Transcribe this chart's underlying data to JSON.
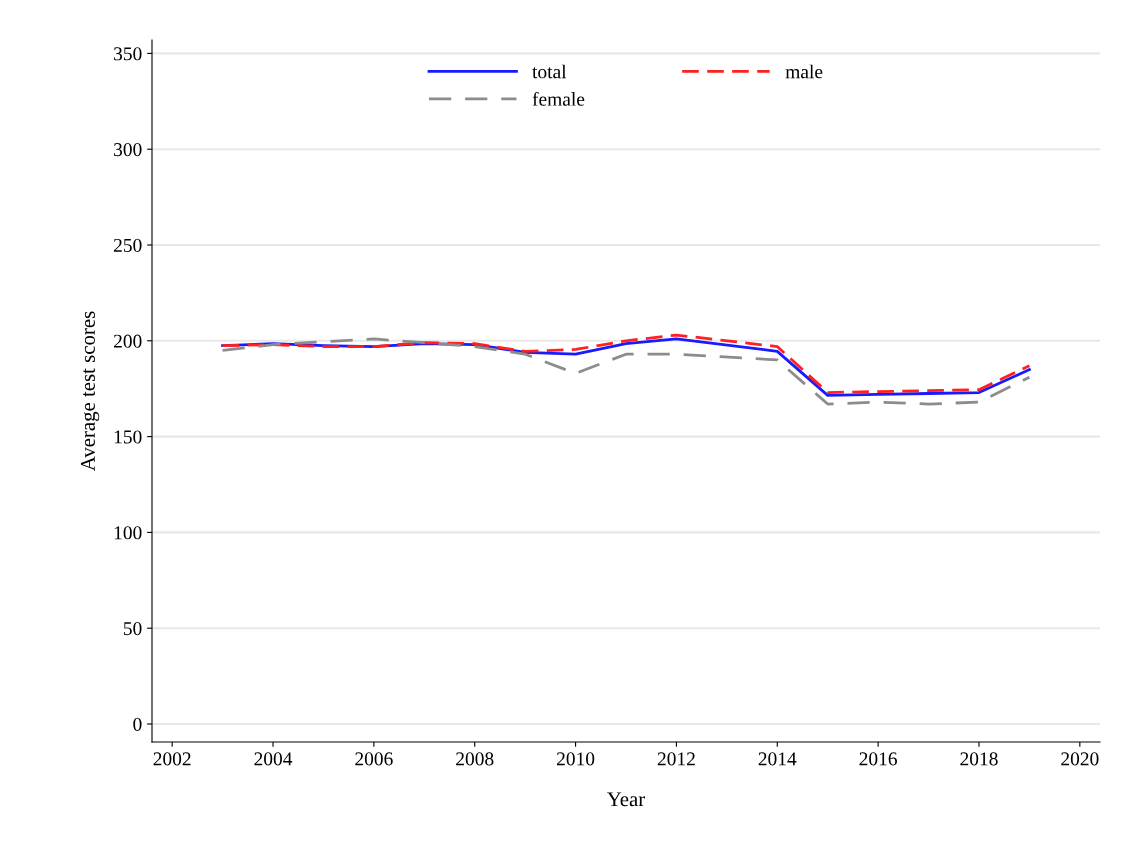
{
  "chart_data": {
    "type": "line",
    "xlabel": "Year",
    "ylabel": "Average test scores",
    "x": [
      2003,
      2004,
      2005,
      2006,
      2007,
      2008,
      2009,
      2010,
      2011,
      2012,
      2014,
      2015,
      2016,
      2017,
      2018,
      2019
    ],
    "series": [
      {
        "name": "total",
        "color": "#1a1aff",
        "line_style": "solid",
        "values": [
          197.5,
          198.5,
          197.5,
          197,
          198.5,
          198,
          194,
          193,
          198.5,
          201,
          194.5,
          171.5,
          172,
          172.5,
          173,
          185
        ]
      },
      {
        "name": "male",
        "color": "#ff2020",
        "line_style": "dashed",
        "values": [
          197.5,
          198,
          197,
          197,
          199,
          198.5,
          194.5,
          195.5,
          200,
          203,
          197,
          173,
          173.5,
          174,
          174.5,
          187
        ]
      },
      {
        "name": "female",
        "color": "#8c8c8c",
        "line_style": "dashed",
        "values": [
          195,
          198,
          199.5,
          201,
          199,
          197,
          193,
          183,
          193,
          193,
          190,
          167,
          168,
          167,
          168,
          181
        ]
      }
    ],
    "xlim": [
      2001.6,
      2020.4
    ],
    "xticks": [
      2002,
      2004,
      2006,
      2008,
      2010,
      2012,
      2014,
      2016,
      2018,
      2020
    ],
    "ylim": [
      -9.4,
      357
    ],
    "yticks": [
      0,
      50,
      100,
      150,
      200,
      250,
      300,
      350
    ],
    "grid": "y",
    "legend": "top",
    "marker": "none"
  }
}
